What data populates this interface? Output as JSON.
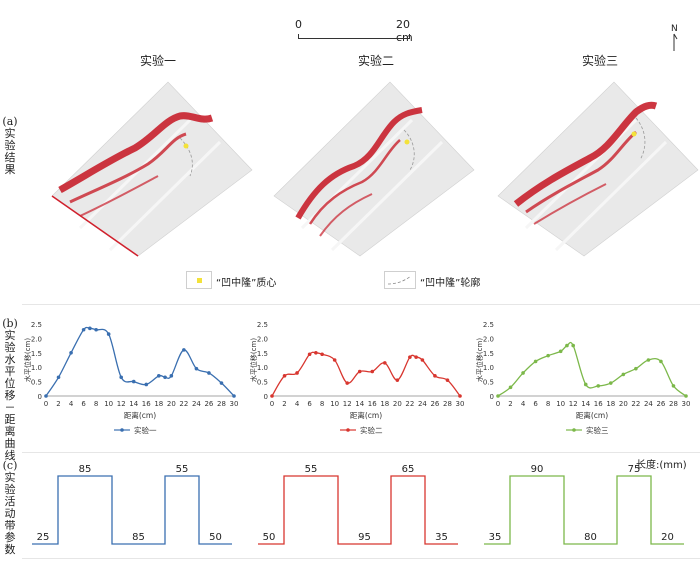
{
  "scalebar": {
    "start_label": "0",
    "end_label": "20 cm"
  },
  "north": {
    "label": "N"
  },
  "sections": {
    "a": {
      "label": "(a)实验结果"
    },
    "b": {
      "label": "(b)实验水平位移－距离曲线"
    },
    "c": {
      "label": "(c)实验活动带参数"
    }
  },
  "experiments": [
    {
      "title": "实验一",
      "color": "#3a6fb0"
    },
    {
      "title": "实验二",
      "color": "#d8362f"
    },
    {
      "title": "实验三",
      "color": "#7cb84a"
    }
  ],
  "legend": {
    "centroid": {
      "label": "“凹中隆”质心",
      "color": "#f3e23a"
    },
    "outline": {
      "label": "“凹中隆”轮廓"
    }
  },
  "chart_data": [
    {
      "type": "line",
      "x": [
        0,
        2,
        4,
        6,
        7,
        8,
        10,
        12,
        14,
        16,
        18,
        19,
        20,
        22,
        24,
        26,
        28,
        30
      ],
      "series": [
        {
          "name": "实验一",
          "values": [
            0,
            0.65,
            1.5,
            2.3,
            2.35,
            2.3,
            2.15,
            0.65,
            0.5,
            0.4,
            0.7,
            0.65,
            0.7,
            1.6,
            0.95,
            0.8,
            0.45,
            0
          ]
        }
      ],
      "xlabel": "距离(cm)",
      "ylabel": "水平位移(cm)",
      "xlim": [
        0,
        30
      ],
      "ylim": [
        0,
        2.5
      ],
      "xticks": [
        "0",
        "2",
        "4",
        "6",
        "8",
        "10",
        "12",
        "14",
        "16",
        "18",
        "20",
        "22",
        "24",
        "26",
        "28",
        "30"
      ],
      "yticks": [
        "0",
        "0.5",
        "1.0",
        "1.5",
        "2.0",
        "2.5"
      ],
      "legend": "bottom",
      "grid": false
    },
    {
      "type": "line",
      "x": [
        0,
        2,
        4,
        6,
        7,
        8,
        10,
        12,
        14,
        16,
        18,
        20,
        22,
        23,
        24,
        26,
        28,
        30
      ],
      "series": [
        {
          "name": "实验二",
          "values": [
            0,
            0.7,
            0.8,
            1.45,
            1.5,
            1.45,
            1.25,
            0.45,
            0.85,
            0.85,
            1.15,
            0.55,
            1.35,
            1.35,
            1.25,
            0.7,
            0.55,
            0
          ]
        }
      ],
      "xlabel": "距离(cm)",
      "ylabel": "水平位移(cm)",
      "xlim": [
        0,
        30
      ],
      "ylim": [
        0,
        2.5
      ],
      "xticks": [
        "0",
        "2",
        "4",
        "6",
        "8",
        "10",
        "12",
        "14",
        "16",
        "18",
        "20",
        "22",
        "24",
        "26",
        "28",
        "30"
      ],
      "yticks": [
        "0",
        "0.5",
        "1.0",
        "1.5",
        "2.0",
        "2.5"
      ],
      "legend": "bottom",
      "grid": false
    },
    {
      "type": "line",
      "x": [
        0,
        2,
        4,
        6,
        8,
        10,
        11,
        12,
        14,
        16,
        18,
        20,
        22,
        24,
        26,
        28,
        30
      ],
      "series": [
        {
          "name": "实验三",
          "values": [
            0,
            0.3,
            0.8,
            1.2,
            1.4,
            1.55,
            1.75,
            1.75,
            0.4,
            0.35,
            0.45,
            0.75,
            0.95,
            1.25,
            1.2,
            0.35,
            0
          ]
        }
      ],
      "xlabel": "距离(cm)",
      "ylabel": "水平位移(cm)",
      "xlim": [
        0,
        30
      ],
      "ylim": [
        0,
        2.5
      ],
      "xticks": [
        "0",
        "2",
        "4",
        "6",
        "8",
        "10",
        "12",
        "14",
        "16",
        "18",
        "20",
        "22",
        "24",
        "26",
        "28",
        "30"
      ],
      "yticks": [
        "0",
        "0.5",
        "1.0",
        "1.5",
        "2.0",
        "2.5"
      ],
      "legend": "bottom",
      "grid": false
    }
  ],
  "bands": {
    "unit_label": "长度:(mm)",
    "items": [
      {
        "values": [
          25,
          85,
          85,
          55,
          50
        ]
      },
      {
        "values": [
          50,
          55,
          95,
          65,
          35
        ]
      },
      {
        "values": [
          35,
          90,
          80,
          75,
          20
        ]
      }
    ]
  }
}
